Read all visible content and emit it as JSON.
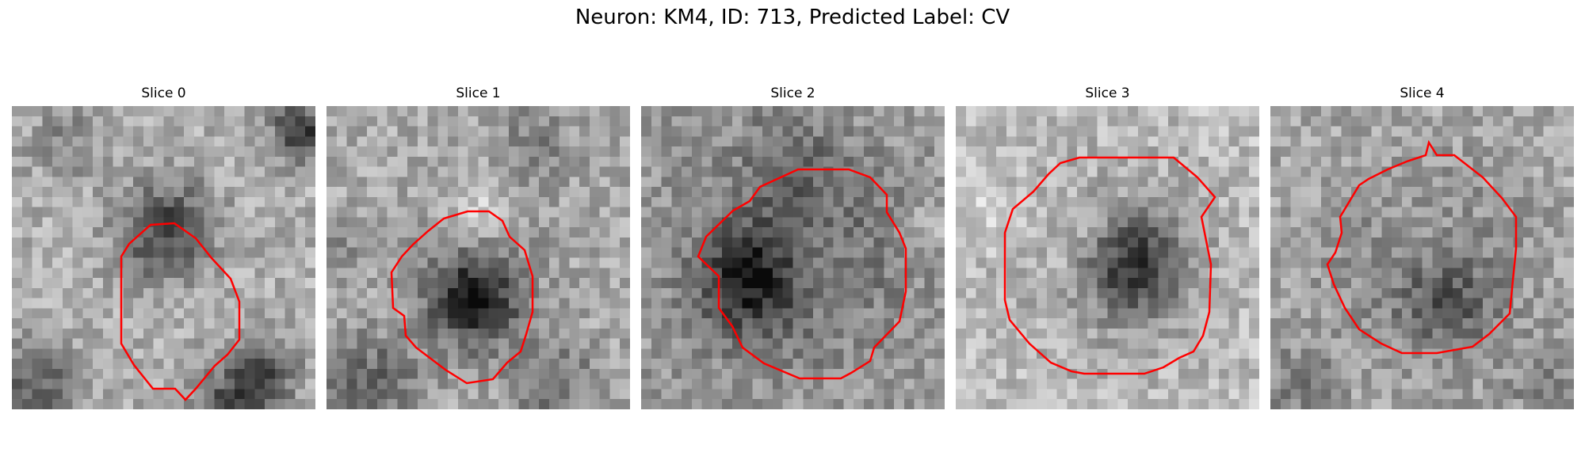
{
  "figure": {
    "title": "Neuron: KM4, ID: 713, Predicted Label: CV"
  },
  "colors": {
    "contour": "#ff0000",
    "background": "#ffffff",
    "text": "#000000"
  },
  "slices": [
    {
      "label": "Slice 0"
    },
    {
      "label": "Slice 1"
    },
    {
      "label": "Slice 2"
    },
    {
      "label": "Slice 3"
    },
    {
      "label": "Slice 4"
    }
  ]
}
